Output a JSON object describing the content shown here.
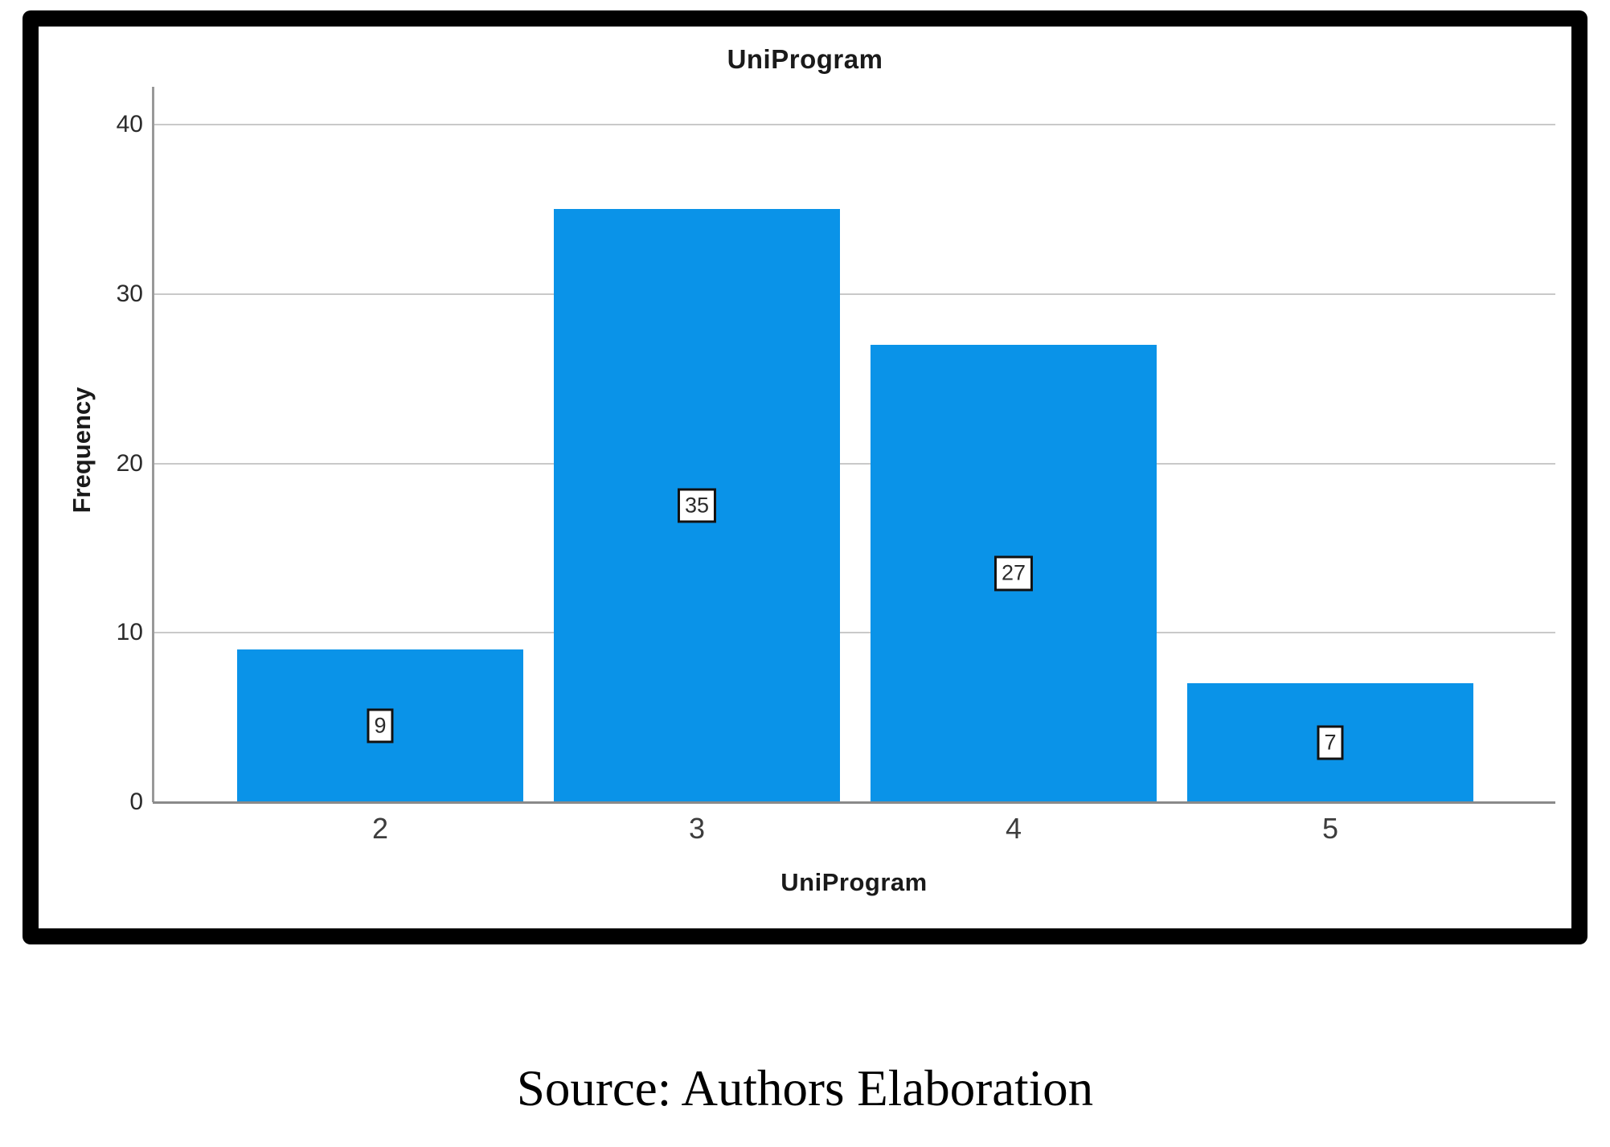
{
  "figure": {
    "source_caption": "Source: Authors Elaboration"
  },
  "chart_data": {
    "type": "bar",
    "title": "UniProgram",
    "xlabel": "UniProgram",
    "ylabel": "Frequency",
    "categories": [
      "2",
      "3",
      "4",
      "5"
    ],
    "values": [
      9,
      35,
      27,
      7
    ],
    "data_labels": [
      "9",
      "35",
      "27",
      "7"
    ],
    "yticks": [
      0,
      10,
      20,
      30,
      40
    ],
    "ylim": [
      0,
      42
    ],
    "grid": true,
    "legend": "none",
    "bar_color": "#0a93e8",
    "gridline_color": "#c9c9c9",
    "axis_color": "#8a8a8a"
  }
}
